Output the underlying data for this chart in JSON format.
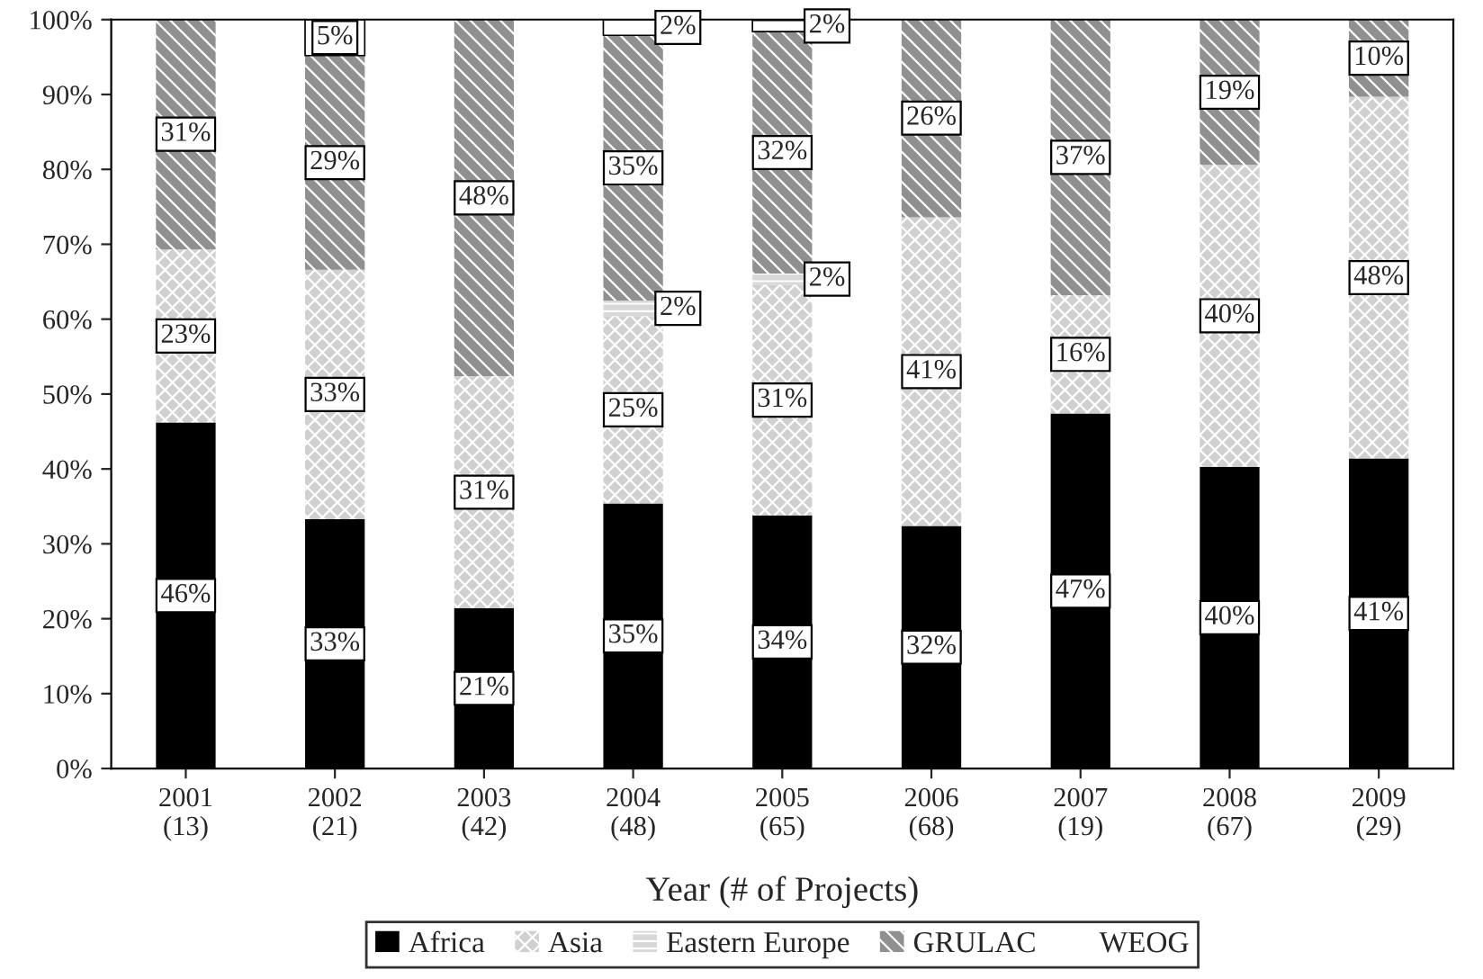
{
  "chart_data": {
    "type": "bar",
    "stacked": true,
    "xlabel": "Year (# of Projects)",
    "categories": [
      "2001\n(13)",
      "2002\n(21)",
      "2003\n(42)",
      "2004\n(48)",
      "2005\n(65)",
      "2006\n(68)",
      "2007\n(19)",
      "2008\n(67)",
      "2009\n(29)"
    ],
    "series": [
      {
        "name": "Africa",
        "color": "#000000",
        "values": [
          46.2,
          33.3,
          21.4,
          35.4,
          33.8,
          32.4,
          47.4,
          40.3,
          41.4
        ],
        "value_labels": [
          "46%",
          "33%",
          "21%",
          "35%",
          "34%",
          "32%",
          "47%",
          "40%",
          "41%"
        ]
      },
      {
        "name": "Asia",
        "color": "#d0d0d0",
        "values": [
          23.1,
          33.3,
          31.0,
          25.0,
          30.8,
          41.2,
          15.8,
          40.3,
          48.3
        ],
        "value_labels": [
          "23%",
          "33%",
          "31%",
          "25%",
          "31%",
          "41%",
          "16%",
          "40%",
          "48%"
        ]
      },
      {
        "name": "Eastern Europe",
        "color": "#d8d8d8",
        "values": [
          null,
          null,
          null,
          2.1,
          1.5,
          null,
          null,
          null,
          null
        ],
        "value_labels": [
          null,
          null,
          null,
          "2%",
          "2%",
          null,
          null,
          null,
          null
        ]
      },
      {
        "name": "GRULAC",
        "color": "#909090",
        "values": [
          30.8,
          28.6,
          47.6,
          35.4,
          32.3,
          26.5,
          36.8,
          19.4,
          10.3
        ],
        "value_labels": [
          "31%",
          "29%",
          "48%",
          "35%",
          "32%",
          "26%",
          "37%",
          "19%",
          "10%"
        ]
      },
      {
        "name": "WEOG",
        "color": "#ffffff",
        "values": [
          null,
          4.8,
          null,
          2.1,
          1.5,
          null,
          null,
          null,
          null
        ],
        "value_labels": [
          null,
          "5%",
          null,
          "2%",
          "2%",
          null,
          null,
          null,
          null
        ]
      }
    ],
    "ylim": [
      0,
      100
    ],
    "yticks": [
      {
        "value": 0,
        "label": "0%"
      },
      {
        "value": 10,
        "label": "10%"
      },
      {
        "value": 20,
        "label": "20%"
      },
      {
        "value": 30,
        "label": "30%"
      },
      {
        "value": 40,
        "label": "40%"
      },
      {
        "value": 50,
        "label": "50%"
      },
      {
        "value": 60,
        "label": "60%"
      },
      {
        "value": 70,
        "label": "70%"
      },
      {
        "value": 80,
        "label": "80%"
      },
      {
        "value": 90,
        "label": "90%"
      },
      {
        "value": 100,
        "label": "100%"
      }
    ],
    "grid": false,
    "legend": "bottom"
  }
}
